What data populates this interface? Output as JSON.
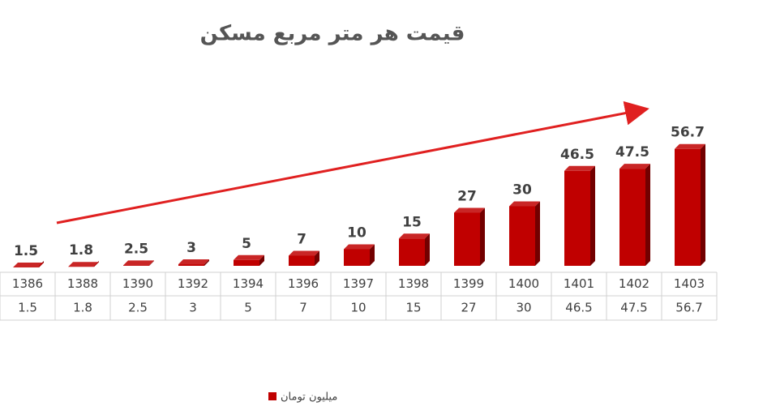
{
  "chart_data": {
    "type": "bar3d",
    "title": "قیمت هر متر مربع مسکن",
    "categories": [
      "1386",
      "1388",
      "1390",
      "1392",
      "1394",
      "1396",
      "1397",
      "1398",
      "1399",
      "1400",
      "1401",
      "1402",
      "1403"
    ],
    "series": [
      {
        "name": "میلیون تومان",
        "color": "#c00000",
        "values": [
          1.5,
          1.8,
          2.5,
          3,
          5,
          7,
          10,
          15,
          27,
          30,
          46.5,
          47.5,
          56.7
        ]
      }
    ],
    "ylim": [
      0,
      60
    ]
  }
}
